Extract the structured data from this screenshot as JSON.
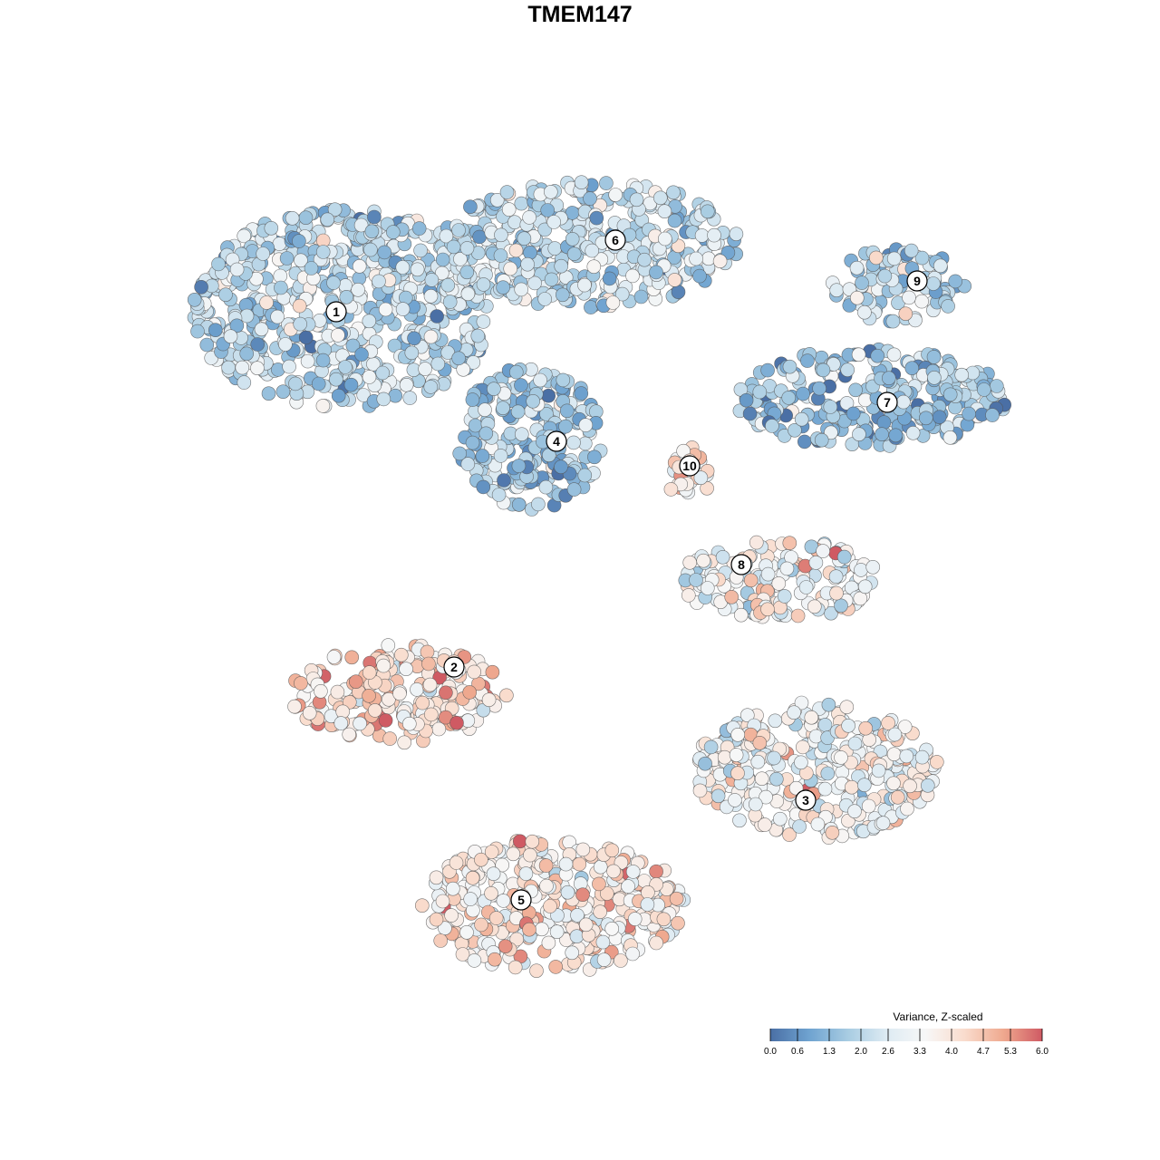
{
  "chart_data": {
    "type": "scatter",
    "title": "TMEM147",
    "color_scale": {
      "title": "Variance, Z-scaled",
      "min": 0.0,
      "max": 6.0,
      "ticks": [
        "0.0",
        "0.6",
        "1.3",
        "2.0",
        "2.6",
        "3.3",
        "4.0",
        "4.7",
        "5.3",
        "6.0"
      ],
      "tick_values": [
        0.0,
        0.6,
        1.3,
        2.0,
        2.6,
        3.3,
        4.0,
        4.7,
        5.3,
        6.0
      ],
      "colors": [
        "#4a6fa5",
        "#6fa3d0",
        "#a8cce2",
        "#deebf3",
        "#f7f7f7",
        "#f9dccd",
        "#efa98f",
        "#cf5a63"
      ]
    },
    "clusters": [
      {
        "label": "1",
        "mean_value": 2.0
      },
      {
        "label": "2",
        "mean_value": 4.2
      },
      {
        "label": "3",
        "mean_value": 3.2
      },
      {
        "label": "4",
        "mean_value": 1.6
      },
      {
        "label": "5",
        "mean_value": 3.8
      },
      {
        "label": "6",
        "mean_value": 2.2
      },
      {
        "label": "7",
        "mean_value": 1.6
      },
      {
        "label": "8",
        "mean_value": 3.2
      },
      {
        "label": "9",
        "mean_value": 2.1
      },
      {
        "label": "10",
        "mean_value": 4.1
      }
    ],
    "grid": false,
    "axes_visible": false,
    "legend_placement": "bottom-right"
  }
}
